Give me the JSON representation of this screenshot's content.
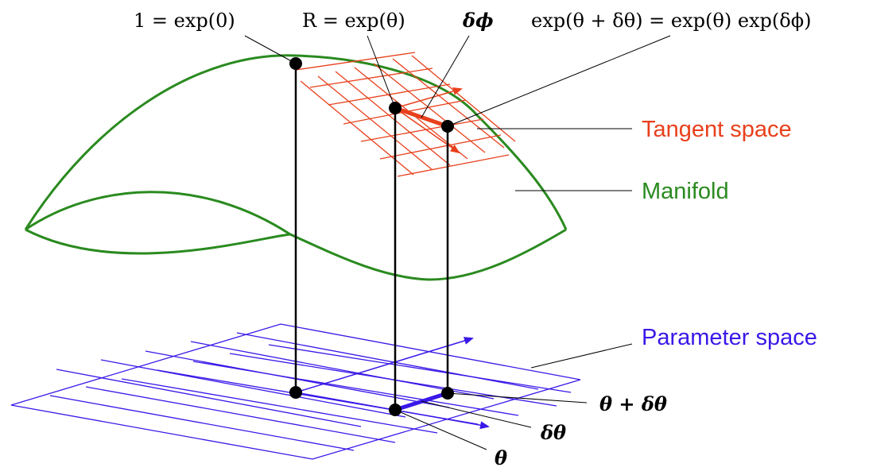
{
  "labels": {
    "identity": "1 = exp(0)",
    "rotation": "R = exp(θ)",
    "delta_phi": "δϕ",
    "composition": "exp(θ + δθ) = exp(θ) exp(δϕ)",
    "tangent_space": "Tangent space",
    "manifold": "Manifold",
    "parameter_space": "Parameter space",
    "theta_plus_dtheta": "θ + δθ",
    "dtheta": "δθ",
    "theta": "θ"
  },
  "colors": {
    "tangent": "#e8401c",
    "manifold": "#2a8a1f",
    "parameter": "#3a18e8",
    "ink": "#000000"
  }
}
